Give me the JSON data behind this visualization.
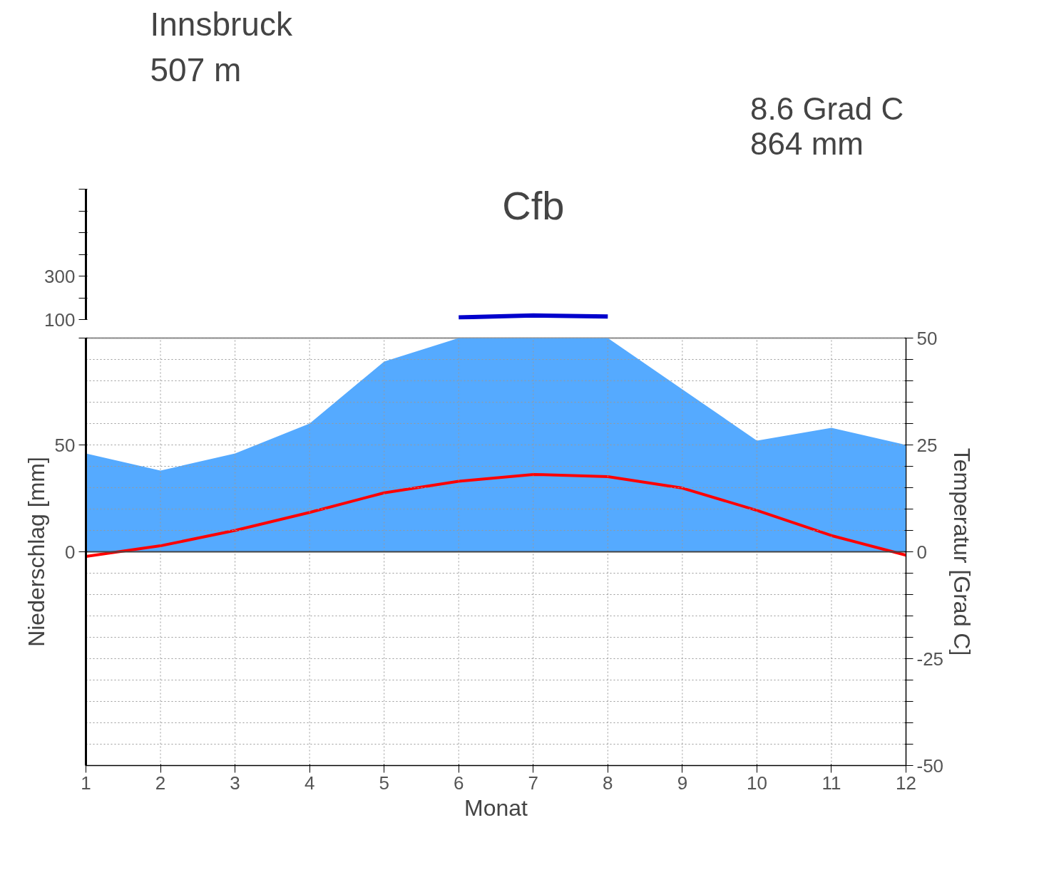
{
  "chart_data": [
    {
      "type": "line",
      "title": "Innsbruck",
      "subtitle": "507 m",
      "annotations": [
        "8.6 Grad C",
        "864 mm",
        "Cfb"
      ],
      "x": [
        6,
        7,
        8
      ],
      "xlim": [
        1,
        12
      ],
      "tick_labels": "y",
      "ylim": [
        100,
        700
      ],
      "yticks": [
        100,
        {
          "value": 200,
          "label": null
        },
        300,
        {
          "value": 400,
          "label": null
        },
        {
          "value": 500,
          "label": null
        },
        {
          "value": 600,
          "label": null
        },
        {
          "value": 700,
          "label": null
        }
      ],
      "series": [
        {
          "color": "#0000cc",
          "values": [
            110,
            119,
            114
          ]
        }
      ]
    },
    {
      "type": "area",
      "xlabel": "Monat",
      "ylabel": "Niederschlag [mm]",
      "y2label": "Temperatur [Grad C]",
      "x": [
        1,
        2,
        3,
        4,
        5,
        6,
        7,
        8,
        9,
        10,
        11,
        12
      ],
      "xlim": [
        1,
        12
      ],
      "xticks": [
        1,
        2,
        3,
        4,
        5,
        6,
        7,
        8,
        9,
        10,
        11,
        12
      ],
      "ylim": [
        -100,
        100
      ],
      "yticks": [
        0,
        50,
        {
          "value": 100,
          "label": null
        }
      ],
      "y2lim": [
        -50,
        50
      ],
      "y2ticks": [
        -50,
        {
          "value": -45,
          "label": null
        },
        {
          "value": -40,
          "label": null
        },
        {
          "value": -35,
          "label": null
        },
        {
          "value": -30,
          "label": null
        },
        -25,
        {
          "value": -20,
          "label": null
        },
        {
          "value": -15,
          "label": null
        },
        {
          "value": -10,
          "label": null
        },
        {
          "value": -5,
          "label": null
        },
        0,
        {
          "value": 5,
          "label": null
        },
        {
          "value": 10,
          "label": null
        },
        {
          "value": 15,
          "label": null
        },
        {
          "value": 20,
          "label": null
        },
        25,
        {
          "value": 30,
          "label": null
        },
        {
          "value": 35,
          "label": null
        },
        {
          "value": 40,
          "label": null
        },
        {
          "value": 45,
          "label": null
        },
        50
      ],
      "grid": true,
      "series": [
        {
          "color": "#55aaff",
          "values": [
            46,
            38,
            46,
            60,
            89,
            100,
            100,
            100,
            76,
            52,
            58,
            50
          ]
        },
        {
          "type": "line",
          "axis": "y2",
          "color": "#ff0000",
          "line_style": "solid",
          "values": [
            -1.1,
            1.4,
            5.0,
            9.2,
            13.8,
            16.5,
            18.1,
            17.6,
            14.9,
            9.7,
            3.8,
            -0.8
          ]
        }
      ]
    }
  ]
}
